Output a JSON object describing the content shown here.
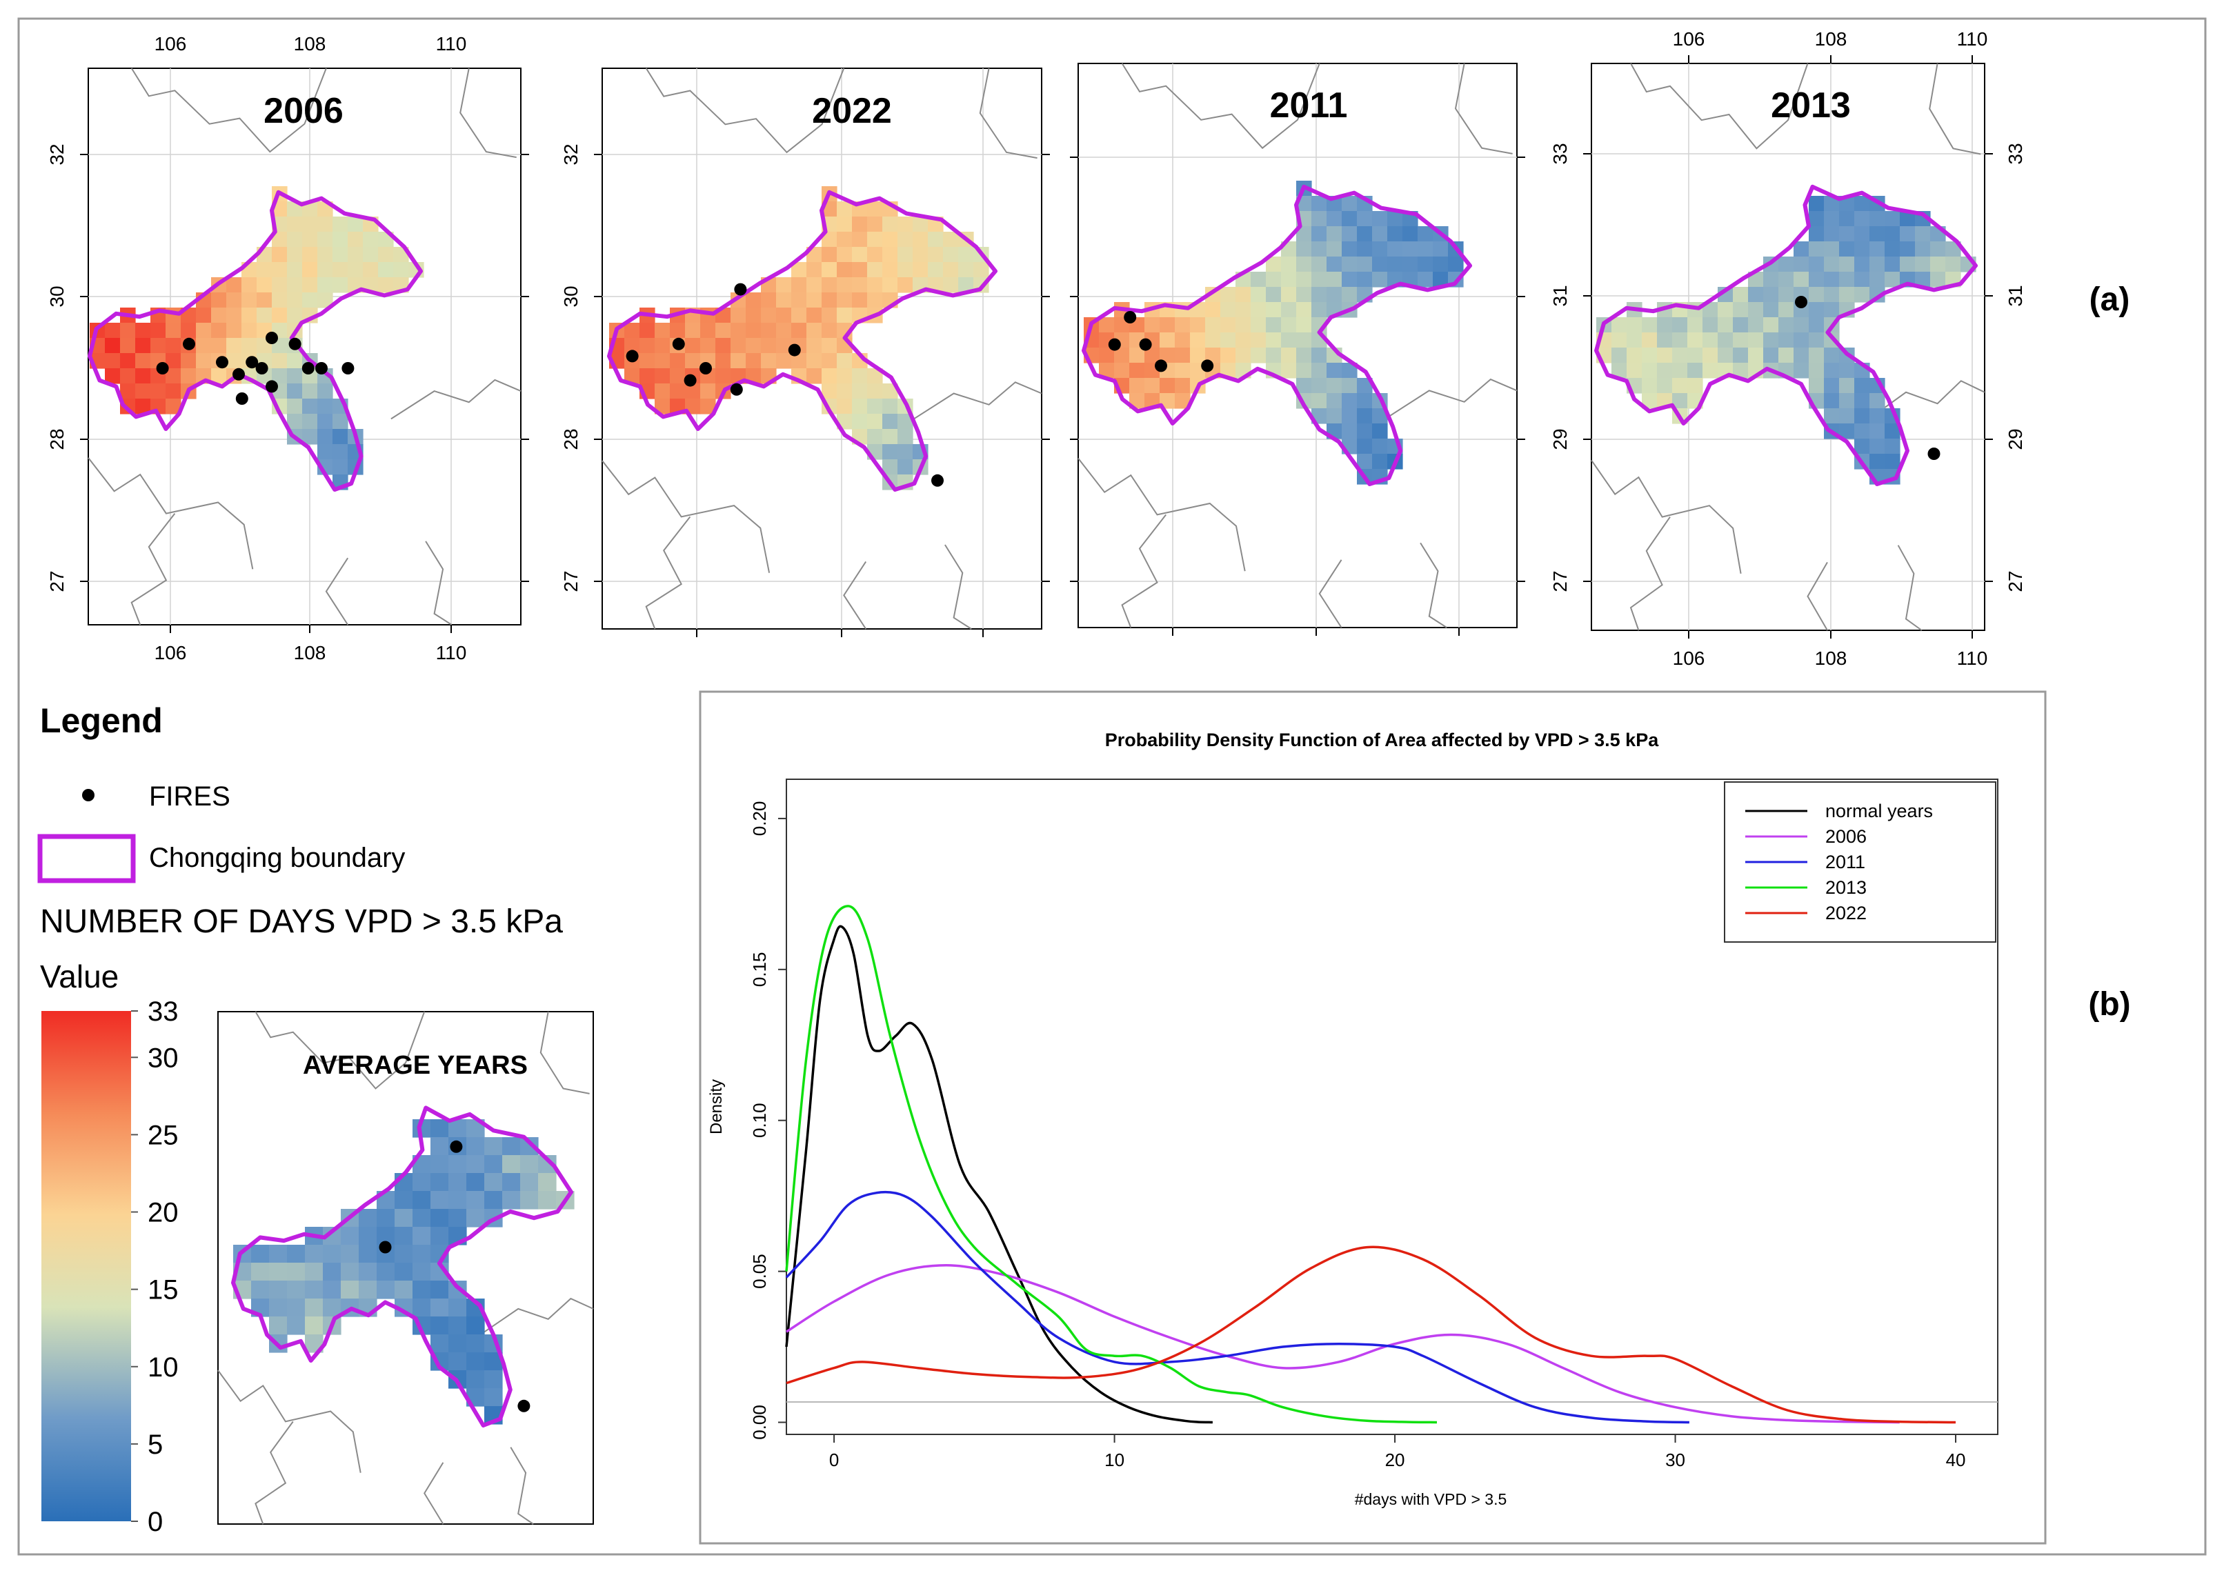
{
  "maps": [
    {
      "id": "m2006",
      "title": "2006",
      "xticks": [
        "106",
        "108",
        "110"
      ],
      "yticks": [
        "32",
        "30",
        "28",
        "27"
      ]
    },
    {
      "id": "m2022",
      "title": "2022",
      "xticks": [],
      "yticks": [
        "32",
        "30",
        "28",
        "27"
      ]
    },
    {
      "id": "m2011",
      "title": "2011",
      "xticks": [],
      "yticks": []
    },
    {
      "id": "m2013",
      "title": "2013",
      "xticks": [
        "106",
        "108",
        "110"
      ],
      "yticks": [
        "33",
        "31",
        "29",
        "27"
      ]
    },
    {
      "id": "avg",
      "title": "AVERAGE YEARS",
      "xticks": [],
      "yticks": []
    }
  ],
  "panel_labels": {
    "a": "(a)",
    "b": "(b)"
  },
  "legend": {
    "title": "Legend",
    "fires_label": "FIRES",
    "boundary_label": "Chongqing boundary",
    "variable_label": "NUMBER OF DAYS VPD > 3.5 kPa",
    "value_label": "Value",
    "colorbar_ticks": [
      "33",
      "30",
      "25",
      "20",
      "15",
      "10",
      "5",
      "0"
    ]
  },
  "colors": {
    "boundary": "#c020e0",
    "fire": "#000000",
    "low": "#2f7ebf",
    "high": "#f03a2a"
  },
  "chart_data": {
    "type": "line",
    "title": "Probability Density Function of Area affected by VPD > 3.5 kPa",
    "xlabel": "#days with VPD > 3.5",
    "ylabel": "Density",
    "xlim": [
      -1.7,
      41.5
    ],
    "ylim": [
      -0.004,
      0.213
    ],
    "xticks": [
      0,
      10,
      20,
      30,
      40
    ],
    "yticks": [
      "0.00",
      "0.05",
      "0.10",
      "0.15",
      "0.20"
    ],
    "legend_position": "top-right",
    "series": [
      {
        "name": "normal years",
        "color": "#000000",
        "x": [
          -1.7,
          -1,
          -0.5,
          0,
          0.3,
          0.7,
          1.2,
          1.6,
          2.2,
          2.8,
          3.5,
          4.5,
          5.5,
          6.5,
          7.5,
          8.5,
          9.5,
          10.5,
          11.5,
          12.5,
          13,
          13.5
        ],
        "y": [
          0.025,
          0.09,
          0.14,
          0.16,
          0.164,
          0.155,
          0.128,
          0.123,
          0.128,
          0.132,
          0.12,
          0.085,
          0.07,
          0.05,
          0.03,
          0.018,
          0.01,
          0.005,
          0.002,
          0.0005,
          0.0001,
          0
        ]
      },
      {
        "name": "2006",
        "color": "#c040f0",
        "x": [
          -1.7,
          0,
          2,
          4,
          6,
          8,
          10,
          12,
          14,
          16,
          18,
          20,
          22,
          24,
          26,
          28,
          30,
          32,
          34,
          36,
          38
        ],
        "y": [
          0.03,
          0.04,
          0.049,
          0.052,
          0.049,
          0.043,
          0.035,
          0.028,
          0.022,
          0.018,
          0.02,
          0.026,
          0.029,
          0.026,
          0.018,
          0.01,
          0.005,
          0.002,
          0.0007,
          0.0002,
          0
        ]
      },
      {
        "name": "2011",
        "color": "#2020e0",
        "x": [
          -1.7,
          -0.5,
          0.5,
          1.5,
          2.5,
          3.5,
          5,
          6.5,
          8,
          10,
          12,
          14,
          16,
          18,
          20,
          21,
          23,
          25,
          27,
          29,
          30.5
        ],
        "y": [
          0.048,
          0.06,
          0.072,
          0.076,
          0.075,
          0.068,
          0.053,
          0.04,
          0.028,
          0.02,
          0.02,
          0.022,
          0.025,
          0.026,
          0.025,
          0.022,
          0.013,
          0.005,
          0.0015,
          0.0003,
          0
        ]
      },
      {
        "name": "2013",
        "color": "#10e010",
        "x": [
          -1.7,
          -1,
          -0.3,
          0.5,
          1.2,
          2,
          3,
          4,
          5,
          6.5,
          8,
          9,
          10,
          11,
          12,
          13,
          14,
          14.8,
          16,
          17.5,
          19,
          20.5,
          21.5
        ],
        "y": [
          0.05,
          0.12,
          0.16,
          0.171,
          0.16,
          0.128,
          0.095,
          0.072,
          0.058,
          0.046,
          0.035,
          0.024,
          0.022,
          0.022,
          0.018,
          0.012,
          0.01,
          0.009,
          0.005,
          0.002,
          0.0005,
          0.0001,
          0
        ]
      },
      {
        "name": "2022",
        "color": "#e02010",
        "x": [
          -1.7,
          0,
          1,
          3,
          5,
          7,
          9,
          11,
          13,
          15,
          17,
          19,
          21,
          23,
          25,
          27,
          29,
          30,
          32,
          34,
          36,
          38,
          40
        ],
        "y": [
          0.013,
          0.018,
          0.02,
          0.018,
          0.016,
          0.015,
          0.015,
          0.018,
          0.026,
          0.038,
          0.051,
          0.058,
          0.054,
          0.042,
          0.028,
          0.022,
          0.022,
          0.021,
          0.012,
          0.004,
          0.001,
          0.0002,
          0
        ]
      }
    ]
  }
}
